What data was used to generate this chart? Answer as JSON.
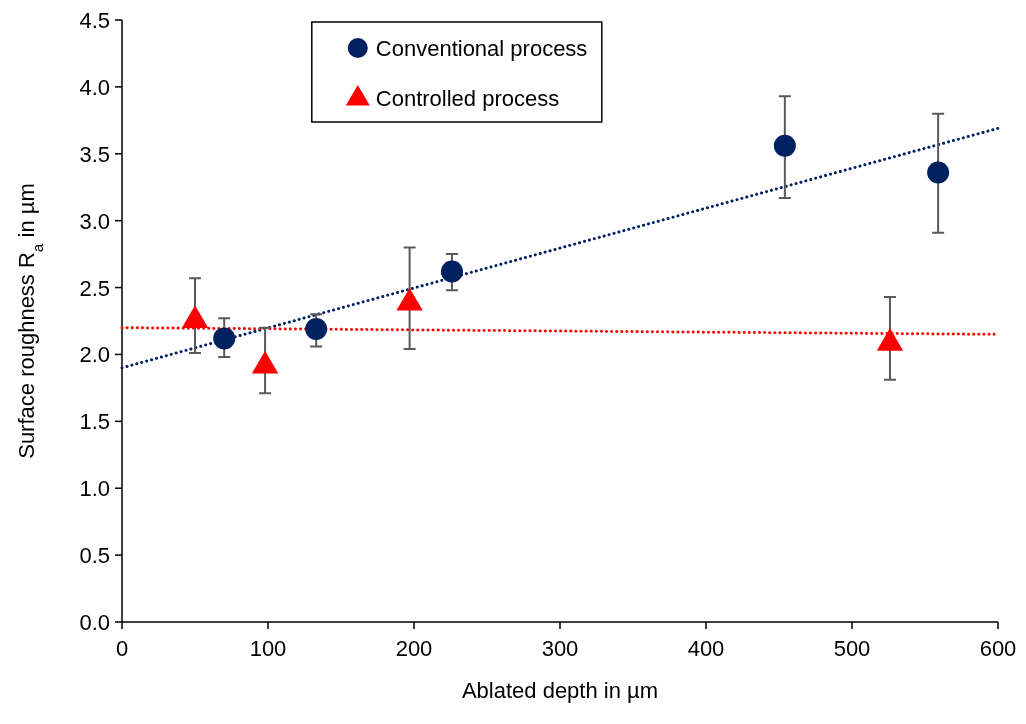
{
  "chart_data": {
    "type": "scatter",
    "xlabel": "Ablated depth in µm",
    "ylabel": "Surface roughness R$_{a}$ in µm",
    "xlim": [
      0,
      600
    ],
    "xticks": [
      0,
      100,
      200,
      300,
      400,
      500,
      600
    ],
    "ylim": [
      0,
      4.5
    ],
    "yticks": [
      {
        "value": 0,
        "label": "0.0"
      },
      {
        "value": 0.5,
        "label": "0.5"
      },
      {
        "value": 1,
        "label": "1.0"
      },
      {
        "value": 1.5,
        "label": "1.5"
      },
      {
        "value": 2,
        "label": "2.0"
      },
      {
        "value": 2.5,
        "label": "2.5"
      },
      {
        "value": 3,
        "label": "3.0"
      },
      {
        "value": 3.5,
        "label": "3.5"
      },
      {
        "value": 4,
        "label": "4.0"
      },
      {
        "value": 4.5,
        "label": "4.5"
      }
    ],
    "grid": false,
    "legend": "top left",
    "series": [
      {
        "name": "Conventional process",
        "color": "#002060",
        "marker": "circle",
        "x": [
          70,
          133,
          226,
          454,
          559
        ],
        "values": [
          2.12,
          2.19,
          2.62,
          3.56,
          3.36
        ],
        "errors": [
          [
            1.98,
            2.27
          ],
          [
            2.06,
            2.3
          ],
          [
            2.48,
            2.75
          ],
          [
            3.17,
            3.93
          ],
          [
            2.91,
            3.8
          ]
        ]
      },
      {
        "name": "Controlled process",
        "color": "#ff0000",
        "marker": "triangle",
        "x": [
          50,
          98,
          197,
          526
        ],
        "values": [
          2.26,
          1.92,
          2.39,
          2.09
        ],
        "errors": [
          [
            2.01,
            2.57
          ],
          [
            1.71,
            2.2
          ],
          [
            2.04,
            2.8
          ],
          [
            1.81,
            2.43
          ]
        ]
      },
      {
        "type": "line",
        "color": "#002060",
        "line_style": "dotted",
        "x": [
          0,
          600
        ],
        "values": [
          1.9,
          3.69
        ]
      },
      {
        "type": "line",
        "color": "#ff0000",
        "line_style": "dotted",
        "x": [
          0,
          600
        ],
        "values": [
          2.2,
          2.15
        ]
      }
    ]
  }
}
